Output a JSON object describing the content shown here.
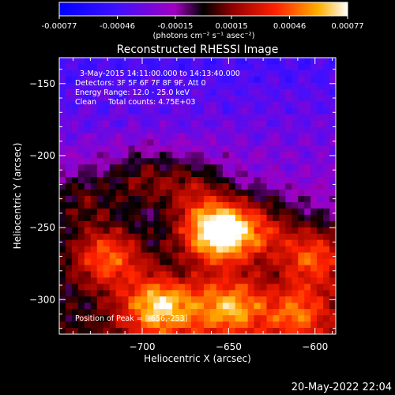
{
  "chart_data": {
    "type": "heatmap",
    "title": "Reconstructed RHESSI Image",
    "colorbar": {
      "tick_labels": [
        "-0.00077",
        "-0.00046",
        "-0.00015",
        "0.00015",
        "0.00046",
        "0.00077"
      ],
      "range": [
        -0.00077,
        0.00077
      ],
      "units_label": "(photons cm⁻² s⁻¹ asec⁻²)"
    },
    "xlabel": "Heliocentric X (arcsec)",
    "ylabel": "Heliocentric Y (arcsec)",
    "xlim": [
      -748,
      -588
    ],
    "ylim": [
      -324,
      -132
    ],
    "x_ticks": [
      -700,
      -650,
      -600
    ],
    "y_ticks": [
      -150,
      -200,
      -250,
      -300
    ],
    "x_tick_labels": [
      "−700",
      "−650",
      "−600"
    ],
    "y_tick_labels": [
      "−150",
      "−200",
      "−250",
      "−300"
    ],
    "annotations": [
      "3-May-2015 14:11:00.000 to 14:13:40.000",
      "Detectors: 3F 5F 6F 7F 8F 9F, Att 0",
      "Energy Range: 12.0 - 25.0 keV",
      "Clean     Total counts: 4.75E+03",
      "Position of Peak = [-656,-253]"
    ],
    "peak_position": [
      -656,
      -253
    ],
    "total_counts": 4750,
    "energy_range_kev": [
      12.0,
      25.0
    ],
    "footer_date": "20-May-2022 22:04",
    "sources": [
      {
        "x": -656,
        "y": -253,
        "intensity": 1.0
      },
      {
        "x": -690,
        "y": -305,
        "intensity": 0.7
      },
      {
        "x": -650,
        "y": -305,
        "intensity": 0.6
      },
      {
        "x": -720,
        "y": -270,
        "intensity": 0.55
      },
      {
        "x": -600,
        "y": -270,
        "intensity": 0.5
      },
      {
        "x": -610,
        "y": -310,
        "intensity": 0.45
      },
      {
        "x": -670,
        "y": -222,
        "intensity": 0.3
      },
      {
        "x": -700,
        "y": -215,
        "intensity": 0.3
      },
      {
        "x": -735,
        "y": -230,
        "intensity": 0.25
      },
      {
        "x": -630,
        "y": -250,
        "intensity": 0.3
      }
    ],
    "background_level": -0.25
  }
}
